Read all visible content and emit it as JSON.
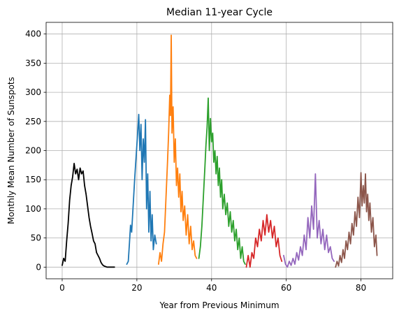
{
  "chart_data": {
    "type": "line",
    "title": "Median 11-year Cycle",
    "xlabel": "Year from Previous Minimum",
    "ylabel": "Monthly Mean Number of Sunspots",
    "xlim": [
      -4.3,
      88.5
    ],
    "ylim": [
      -20,
      420
    ],
    "x_ticks": [
      0,
      20,
      40,
      60,
      80
    ],
    "y_ticks": [
      0,
      50,
      100,
      150,
      200,
      250,
      300,
      350,
      400
    ],
    "x_tick_labels": [
      "0",
      "20",
      "40",
      "60",
      "80"
    ],
    "y_tick_labels": [
      "0",
      "50",
      "100",
      "150",
      "200",
      "250",
      "300",
      "350",
      "400"
    ],
    "grid": true,
    "legend": "none",
    "series": [
      {
        "color": "#000000",
        "x": [
          0.0,
          0.4,
          0.8,
          1.2,
          1.6,
          2.0,
          2.4,
          2.8,
          3.2,
          3.6,
          4.0,
          4.4,
          4.8,
          5.2,
          5.6,
          6.0,
          6.4,
          6.8,
          7.2,
          7.6,
          8.0,
          8.4,
          8.8,
          9.2,
          9.6,
          10.0,
          10.4,
          10.8,
          11.2,
          11.6,
          12.0,
          13.0,
          14.0
        ],
        "y": [
          3,
          15,
          10,
          45,
          75,
          115,
          140,
          155,
          178,
          160,
          168,
          150,
          170,
          160,
          165,
          140,
          125,
          105,
          85,
          70,
          58,
          45,
          40,
          25,
          20,
          15,
          8,
          4,
          2,
          1,
          0,
          0,
          0
        ]
      },
      {
        "color": "#1f77b4",
        "x": [
          17.3,
          17.7,
          18.0,
          18.3,
          18.6,
          19.0,
          19.4,
          19.8,
          20.2,
          20.5,
          20.8,
          21.1,
          21.4,
          21.7,
          22.0,
          22.3,
          22.6,
          22.9,
          23.2,
          23.5,
          23.8,
          24.1,
          24.4,
          24.8,
          25.2
        ],
        "y": [
          5,
          10,
          40,
          72,
          60,
          105,
          150,
          190,
          230,
          262,
          200,
          245,
          150,
          220,
          180,
          253,
          100,
          160,
          60,
          130,
          45,
          90,
          30,
          55,
          40
        ]
      },
      {
        "color": "#ff7f0e",
        "x": [
          25.8,
          26.2,
          26.6,
          27.0,
          27.4,
          27.8,
          28.2,
          28.5,
          28.8,
          29.0,
          29.2,
          29.4,
          29.7,
          30.0,
          30.3,
          30.6,
          30.9,
          31.2,
          31.5,
          31.8,
          32.1,
          32.4,
          32.8,
          33.2,
          33.6,
          34.0,
          34.4,
          34.8,
          35.2,
          35.6,
          36.0
        ],
        "y": [
          5,
          25,
          10,
          40,
          60,
          120,
          180,
          230,
          295,
          260,
          398,
          230,
          275,
          180,
          220,
          140,
          170,
          120,
          160,
          95,
          130,
          80,
          105,
          55,
          90,
          40,
          70,
          30,
          45,
          20,
          15
        ]
      },
      {
        "color": "#2ca02c",
        "x": [
          36.6,
          37.0,
          37.4,
          37.8,
          38.2,
          38.5,
          38.8,
          39.1,
          39.4,
          39.7,
          40.0,
          40.3,
          40.6,
          40.9,
          41.2,
          41.5,
          41.8,
          42.1,
          42.4,
          42.7,
          43.0,
          43.4,
          43.8,
          44.2,
          44.6,
          45.0,
          45.4,
          45.8,
          46.2,
          46.6,
          47.0,
          47.4,
          47.8,
          48.2,
          48.6,
          49.0
        ],
        "y": [
          15,
          35,
          70,
          120,
          170,
          210,
          240,
          290,
          200,
          255,
          215,
          230,
          180,
          200,
          160,
          190,
          140,
          170,
          120,
          150,
          100,
          125,
          90,
          110,
          70,
          95,
          60,
          80,
          45,
          65,
          30,
          50,
          15,
          35,
          10,
          5
        ]
      },
      {
        "color": "#d62728",
        "x": [
          49.3,
          49.8,
          50.3,
          50.8,
          51.3,
          51.8,
          52.3,
          52.8,
          53.3,
          53.8,
          54.3,
          54.8,
          55.3,
          55.8,
          56.3,
          56.8,
          57.3,
          57.8,
          58.3,
          58.8
        ],
        "y": [
          0,
          20,
          0,
          25,
          15,
          50,
          35,
          65,
          45,
          80,
          55,
          90,
          60,
          80,
          50,
          70,
          35,
          50,
          20,
          10
        ]
      },
      {
        "color": "#9467bd",
        "x": [
          59.3,
          59.8,
          60.3,
          60.8,
          61.3,
          61.8,
          62.3,
          62.8,
          63.3,
          63.8,
          64.3,
          64.8,
          65.3,
          65.8,
          66.3,
          66.8,
          67.3,
          67.8,
          68.3,
          68.8,
          69.3,
          69.8,
          70.3,
          70.8,
          71.3,
          71.8,
          72.3,
          72.8
        ],
        "y": [
          20,
          5,
          0,
          10,
          3,
          15,
          5,
          25,
          12,
          35,
          20,
          55,
          30,
          85,
          50,
          105,
          65,
          160,
          50,
          80,
          40,
          65,
          30,
          55,
          25,
          35,
          15,
          10
        ]
      },
      {
        "color": "#8c564b",
        "x": [
          73.2,
          73.6,
          74.0,
          74.4,
          74.8,
          75.2,
          75.6,
          76.0,
          76.4,
          76.8,
          77.2,
          77.6,
          78.0,
          78.4,
          78.8,
          79.2,
          79.6,
          80.0,
          80.3,
          80.6,
          80.9,
          81.2,
          81.5,
          81.8,
          82.1,
          82.4,
          82.8,
          83.2,
          83.6,
          84.0,
          84.3
        ],
        "y": [
          0,
          10,
          2,
          20,
          8,
          30,
          15,
          45,
          30,
          60,
          40,
          75,
          55,
          95,
          70,
          120,
          85,
          162,
          105,
          140,
          110,
          160,
          95,
          125,
          80,
          110,
          60,
          85,
          35,
          55,
          20
        ]
      }
    ]
  }
}
